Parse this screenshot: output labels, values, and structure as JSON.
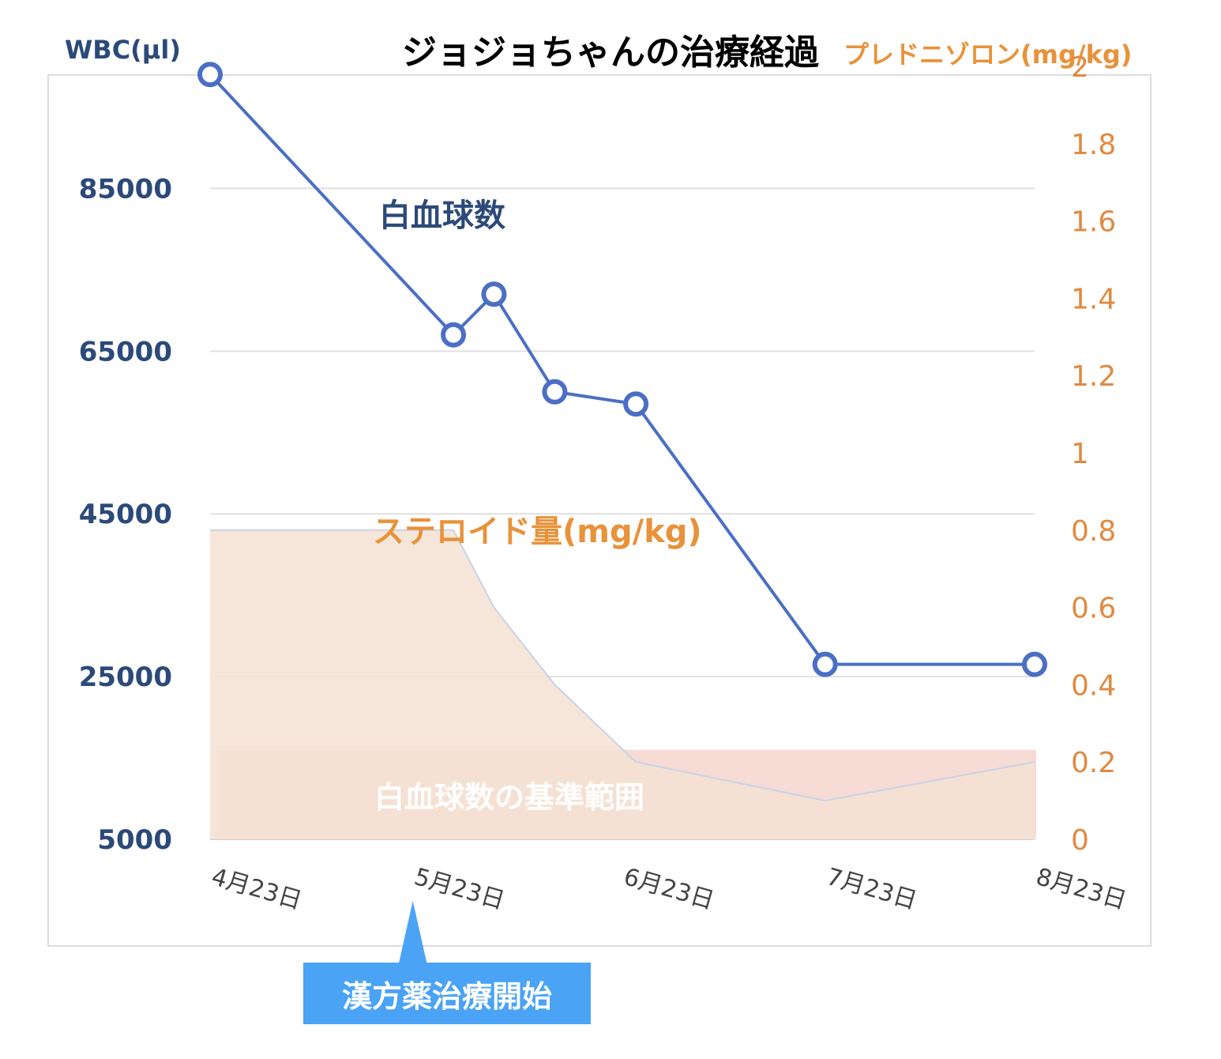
{
  "chart_data": {
    "type": "line",
    "title": "ジョジョちゃんの治療経過",
    "y_left_label": "WBC(μl)",
    "y_right_label": "プレドニゾロン(mg/kg)",
    "y_left_ticks": [
      "85000",
      "65000",
      "45000",
      "25000",
      "5000"
    ],
    "y_right_ticks": [
      "2",
      "1.8",
      "1.6",
      "1.4",
      "1.2",
      "1",
      "0.8",
      "0.6",
      "0.4",
      "0.2",
      "0"
    ],
    "x_tick_labels": [
      "4月23日",
      "5月23日",
      "6月23日",
      "7月23日",
      "8月23日"
    ],
    "ylim_left": [
      5000,
      100000
    ],
    "ylim_right": [
      0,
      2
    ],
    "grid": true,
    "series": [
      {
        "name": "白血球数",
        "color": "#4a6fc4",
        "x": [
          "4月23日",
          "5月29日",
          "6月4日",
          "6月13日",
          "6月25日",
          "7月23日",
          "8月23日"
        ],
        "values": [
          99000,
          67000,
          72000,
          60000,
          58500,
          26500,
          26500
        ]
      },
      {
        "name": "ステロイド量(mg/kg)",
        "type": "area",
        "color": "#f5e2d2",
        "x": [
          "4月23日",
          "5月29日",
          "6月4日",
          "6月13日",
          "6月25日",
          "7月23日",
          "8月23日"
        ],
        "values": [
          0.8,
          0.8,
          0.6,
          0.4,
          0.2,
          0.1,
          0.2
        ]
      }
    ],
    "bands": [
      {
        "name": "白血球数の基準範囲",
        "color": "#f2cdc3",
        "ylim": [
          5000,
          16000
        ]
      }
    ],
    "annotations": [
      {
        "text": "漢方薬治療開始",
        "x": "5月23日"
      }
    ]
  }
}
